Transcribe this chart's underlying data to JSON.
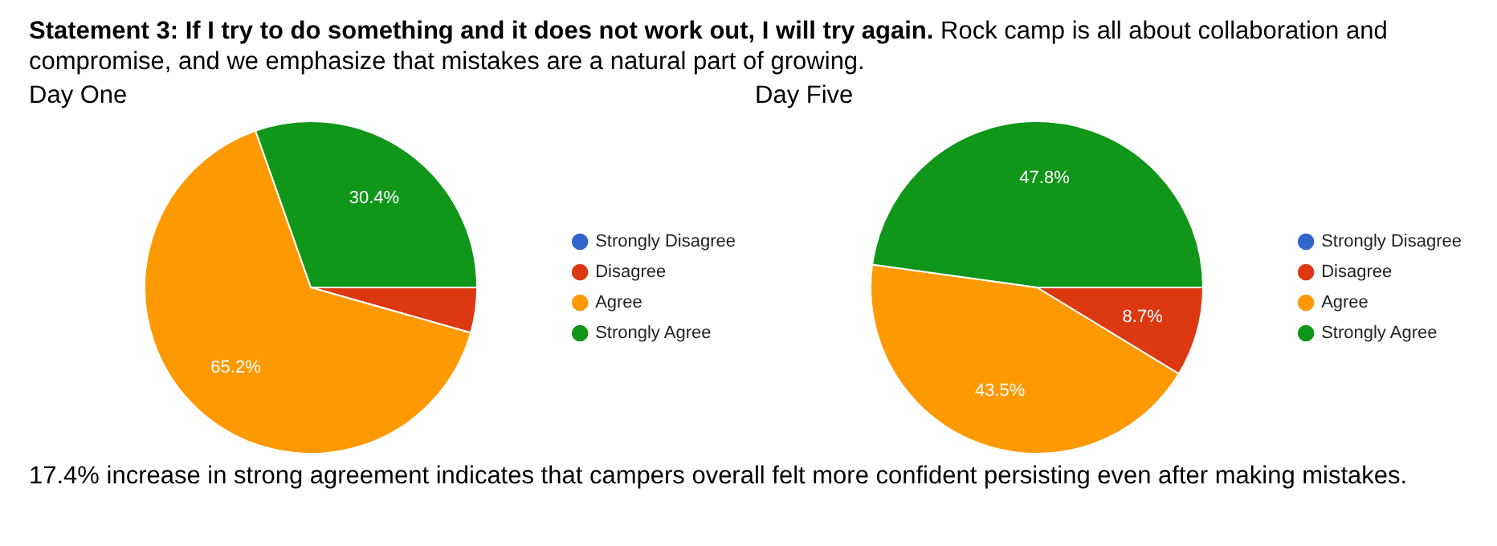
{
  "chart_data": [
    {
      "type": "other",
      "title": "Statement 3: If I try to do something and it does not work out, I will try again.",
      "subtitle": "Rock camp is all about collaboration and compromise, and we emphasize that mistakes are a natural part of growing.",
      "annotations": [
        "17.4% increase in strong agreement indicates that campers overall felt more confident persisting even after making mistakes."
      ]
    },
    {
      "type": "pie",
      "title": "Day One",
      "categories": [
        "Strongly Disagree",
        "Disagree",
        "Agree",
        "Strongly Agree"
      ],
      "values": [
        0,
        4.4,
        65.2,
        30.4
      ],
      "colors": [
        "#3366cc",
        "#dc3912",
        "#ff9900",
        "#109618"
      ],
      "value_labels": [
        null,
        null,
        "65.2%",
        "30.4%"
      ],
      "legend": "right"
    },
    {
      "type": "pie",
      "title": "Day Five",
      "categories": [
        "Strongly Disagree",
        "Disagree",
        "Agree",
        "Strongly Agree"
      ],
      "values": [
        0,
        8.7,
        43.5,
        47.8
      ],
      "colors": [
        "#3366cc",
        "#dc3912",
        "#ff9900",
        "#109618"
      ],
      "value_labels": [
        null,
        "8.7%",
        "43.5%",
        "47.8%"
      ],
      "legend": "right"
    }
  ]
}
